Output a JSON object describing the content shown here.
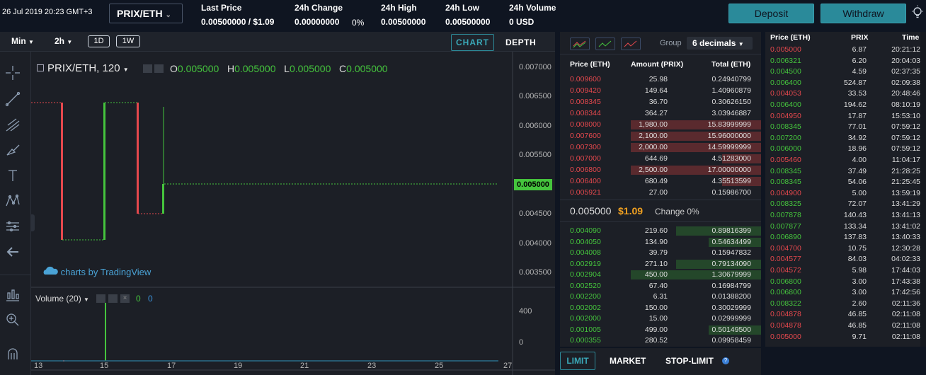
{
  "header": {
    "datetime": "26 Jul 2019 20:23 GMT+3",
    "pair": "PRIX/ETH",
    "stats": [
      {
        "label": "Last Price",
        "value": "0.00500000 / $1.09"
      },
      {
        "label": "24h Change",
        "value": "0.00000000",
        "extra": "0%"
      },
      {
        "label": "24h High",
        "value": "0.00500000"
      },
      {
        "label": "24h Low",
        "value": "0.00500000"
      },
      {
        "label": "24h Volume",
        "value": "0 USD"
      }
    ],
    "deposit_label": "Deposit",
    "withdraw_label": "Withdraw",
    "bulb_icon": "bulb-icon"
  },
  "chart_toolbar": {
    "interval_label": "Min",
    "interval_value": "2h",
    "range_buttons": [
      "1D",
      "1W"
    ],
    "chart_tab": "CHART",
    "depth_tab": "DEPTH"
  },
  "chart": {
    "symbol": "PRIX/ETH, 120",
    "ohlc": [
      {
        "k": "O",
        "v": "0.005000"
      },
      {
        "k": "H",
        "v": "0.005000"
      },
      {
        "k": "L",
        "v": "0.005000"
      },
      {
        "k": "C",
        "v": "0.005000"
      }
    ],
    "price_ticks": [
      "0.007000",
      "0.006500",
      "0.006000",
      "0.005500",
      "0.005000",
      "0.004500",
      "0.004000",
      "0.003500"
    ],
    "last_price_tag": "0.005000",
    "volume_label": "Volume (20)",
    "volume_values": [
      "0",
      "0"
    ],
    "volume_ticks": [
      "400",
      "0"
    ],
    "x_ticks": [
      "13",
      "15",
      "17",
      "19",
      "21",
      "23",
      "25",
      "27"
    ],
    "watermark": "charts by TradingView",
    "colors": {
      "up": "#45c43d",
      "down": "#e5484d"
    }
  },
  "orderbook": {
    "group_label": "Group",
    "decimals": "6 decimals",
    "headers": [
      "Price (ETH)",
      "Amount (PRIX)",
      "Total (ETH)"
    ],
    "asks": [
      {
        "price": "0.009600",
        "amount": "25.98",
        "total": "0.24940799",
        "depth": 0
      },
      {
        "price": "0.009420",
        "amount": "149.64",
        "total": "1.40960879",
        "depth": 0
      },
      {
        "price": "0.008345",
        "amount": "36.70",
        "total": "0.30626150",
        "depth": 0
      },
      {
        "price": "0.008344",
        "amount": "364.27",
        "total": "3.03946887",
        "depth": 0
      },
      {
        "price": "0.008000",
        "amount": "1,980.00",
        "total": "15.83999999",
        "depth": 1
      },
      {
        "price": "0.007600",
        "amount": "2,100.00",
        "total": "15.96000000",
        "depth": 1
      },
      {
        "price": "0.007300",
        "amount": "2,000.00",
        "total": "14.59999999",
        "depth": 1
      },
      {
        "price": "0.007000",
        "amount": "644.69",
        "total": "4.51283000",
        "depth": 0.3
      },
      {
        "price": "0.006800",
        "amount": "2,500.00",
        "total": "17.00000000",
        "depth": 1
      },
      {
        "price": "0.006400",
        "amount": "680.49",
        "total": "4.35513599",
        "depth": 0.3
      },
      {
        "price": "0.005921",
        "amount": "27.00",
        "total": "0.15986700",
        "depth": 0
      }
    ],
    "spread_price": "0.005000",
    "spread_usd": "$1.09",
    "spread_change": "Change 0%",
    "bids": [
      {
        "price": "0.004090",
        "amount": "219.60",
        "total": "0.89816399",
        "depth": 0.65
      },
      {
        "price": "0.004050",
        "amount": "134.90",
        "total": "0.54634499",
        "depth": 0.4
      },
      {
        "price": "0.004008",
        "amount": "39.79",
        "total": "0.15947832",
        "depth": 0
      },
      {
        "price": "0.002919",
        "amount": "271.10",
        "total": "0.79134090",
        "depth": 0.65
      },
      {
        "price": "0.002904",
        "amount": "450.00",
        "total": "1.30679999",
        "depth": 1
      },
      {
        "price": "0.002520",
        "amount": "67.40",
        "total": "0.16984799",
        "depth": 0
      },
      {
        "price": "0.002200",
        "amount": "6.31",
        "total": "0.01388200",
        "depth": 0
      },
      {
        "price": "0.002002",
        "amount": "150.00",
        "total": "0.30029999",
        "depth": 0
      },
      {
        "price": "0.002000",
        "amount": "15.00",
        "total": "0.02999999",
        "depth": 0
      },
      {
        "price": "0.001005",
        "amount": "499.00",
        "total": "0.50149500",
        "depth": 0.4
      },
      {
        "price": "0.000355",
        "amount": "280.52",
        "total": "0.09958459",
        "depth": 0
      }
    ]
  },
  "trades": {
    "headers": [
      "Price (ETH)",
      "PRIX",
      "Time"
    ],
    "rows": [
      {
        "price": "0.005000",
        "amount": "6.87",
        "time": "20:21:12",
        "side": "sell"
      },
      {
        "price": "0.006321",
        "amount": "6.20",
        "time": "20:04:03",
        "side": "buy"
      },
      {
        "price": "0.004500",
        "amount": "4.59",
        "time": "02:37:35",
        "side": "buy"
      },
      {
        "price": "0.006400",
        "amount": "524.87",
        "time": "02:09:38",
        "side": "buy"
      },
      {
        "price": "0.004053",
        "amount": "33.53",
        "time": "20:48:46",
        "side": "sell"
      },
      {
        "price": "0.006400",
        "amount": "194.62",
        "time": "08:10:19",
        "side": "buy"
      },
      {
        "price": "0.004950",
        "amount": "17.87",
        "time": "15:53:10",
        "side": "sell"
      },
      {
        "price": "0.008345",
        "amount": "77.01",
        "time": "07:59:12",
        "side": "buy"
      },
      {
        "price": "0.007200",
        "amount": "34.92",
        "time": "07:59:12",
        "side": "buy"
      },
      {
        "price": "0.006000",
        "amount": "18.96",
        "time": "07:59:12",
        "side": "buy"
      },
      {
        "price": "0.005460",
        "amount": "4.00",
        "time": "11:04:17",
        "side": "sell"
      },
      {
        "price": "0.008345",
        "amount": "37.49",
        "time": "21:28:25",
        "side": "buy"
      },
      {
        "price": "0.008345",
        "amount": "54.06",
        "time": "21:25:45",
        "side": "buy"
      },
      {
        "price": "0.004900",
        "amount": "5.00",
        "time": "13:59:19",
        "side": "sell"
      },
      {
        "price": "0.008325",
        "amount": "72.07",
        "time": "13:41:29",
        "side": "buy"
      },
      {
        "price": "0.007878",
        "amount": "140.43",
        "time": "13:41:13",
        "side": "buy"
      },
      {
        "price": "0.007877",
        "amount": "133.34",
        "time": "13:41:02",
        "side": "buy"
      },
      {
        "price": "0.006890",
        "amount": "137.83",
        "time": "13:40:33",
        "side": "buy"
      },
      {
        "price": "0.004700",
        "amount": "10.75",
        "time": "12:30:28",
        "side": "sell"
      },
      {
        "price": "0.004577",
        "amount": "84.03",
        "time": "04:02:33",
        "side": "sell"
      },
      {
        "price": "0.004572",
        "amount": "5.98",
        "time": "17:44:03",
        "side": "sell"
      },
      {
        "price": "0.006800",
        "amount": "3.00",
        "time": "17:43:38",
        "side": "buy"
      },
      {
        "price": "0.006800",
        "amount": "3.00",
        "time": "17:42:56",
        "side": "buy"
      },
      {
        "price": "0.008322",
        "amount": "2.60",
        "time": "02:11:36",
        "side": "buy"
      },
      {
        "price": "0.004878",
        "amount": "46.85",
        "time": "02:11:08",
        "side": "sell"
      },
      {
        "price": "0.004878",
        "amount": "46.85",
        "time": "02:11:08",
        "side": "sell"
      },
      {
        "price": "0.005000",
        "amount": "9.71",
        "time": "02:11:08",
        "side": "sell"
      }
    ]
  },
  "order_form": {
    "tabs": [
      "LIMIT",
      "MARKET",
      "STOP-LIMIT"
    ],
    "info_icon": "info-icon"
  }
}
